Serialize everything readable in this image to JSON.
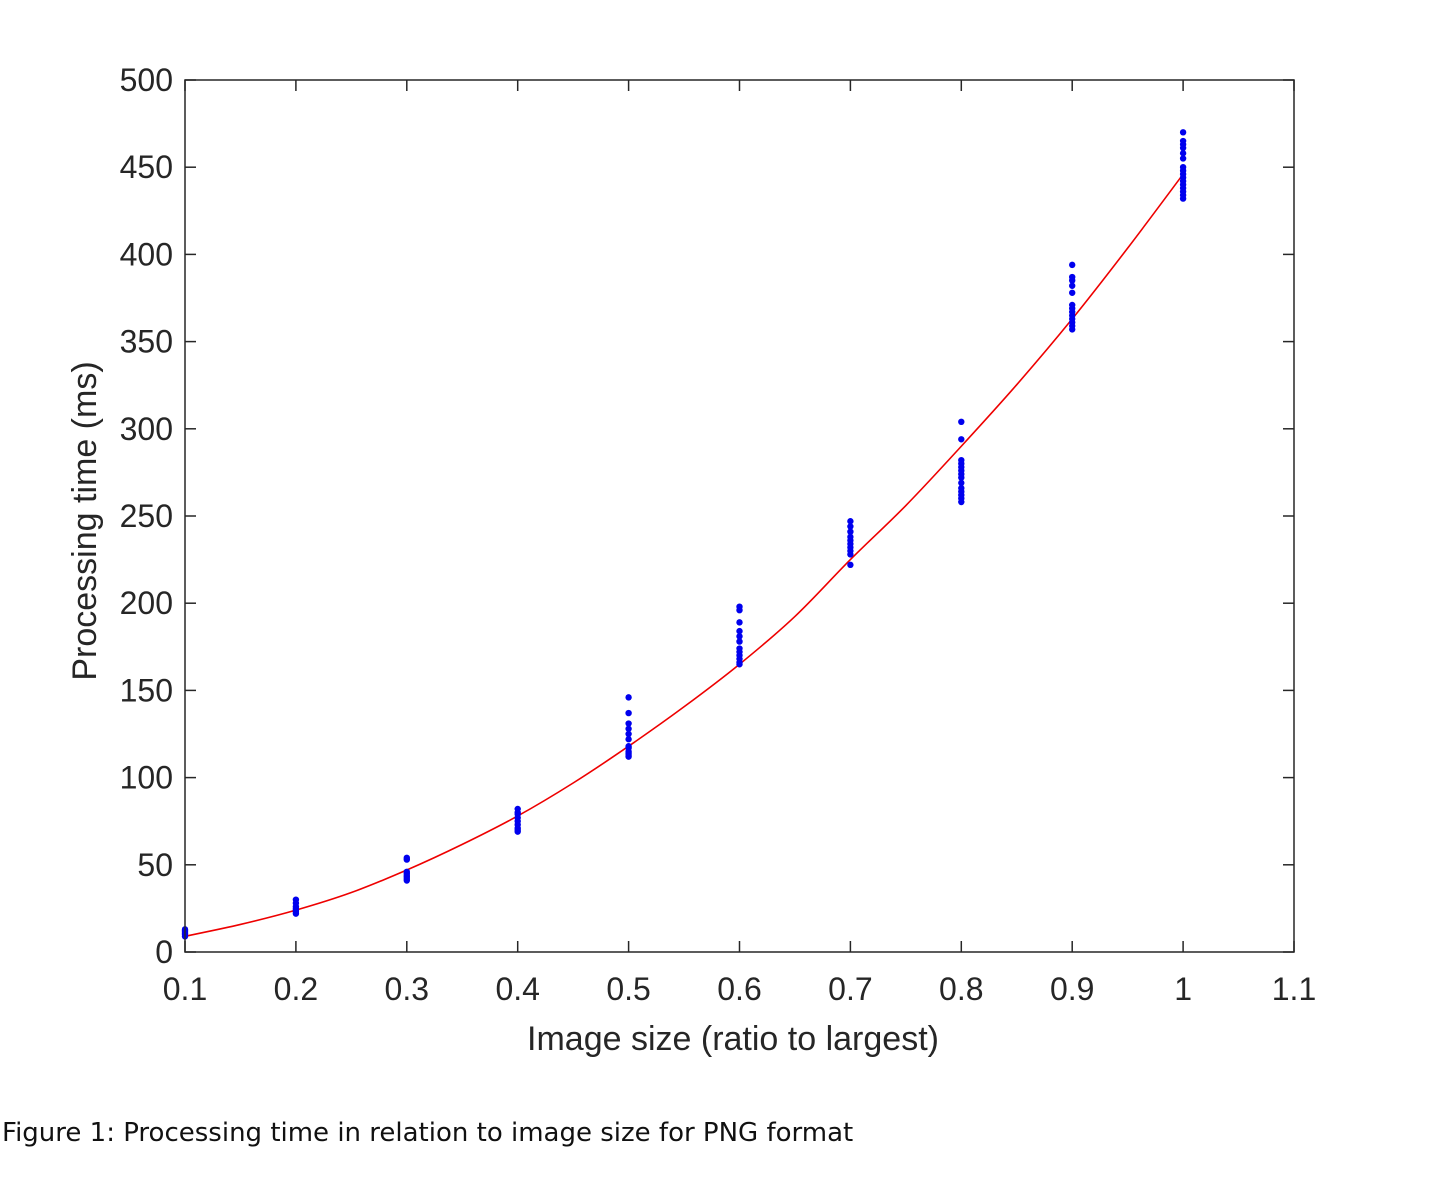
{
  "caption": "Figure 1: Processing time in relation to image size for PNG format",
  "chart_data": {
    "type": "scatter",
    "title": "",
    "xlabel": "Image size (ratio to largest)",
    "ylabel": "Processing time (ms)",
    "xlim": [
      0.1,
      1.1
    ],
    "ylim": [
      0,
      500
    ],
    "xticks": [
      0.1,
      0.2,
      0.3,
      0.4,
      0.5,
      0.6,
      0.7,
      0.8,
      0.9,
      1.0,
      1.1
    ],
    "xtick_labels": [
      "0.1",
      "0.2",
      "0.3",
      "0.4",
      "0.5",
      "0.6",
      "0.7",
      "0.8",
      "0.9",
      "1",
      "1.1"
    ],
    "yticks": [
      0,
      50,
      100,
      150,
      200,
      250,
      300,
      350,
      400,
      450,
      500
    ],
    "ytick_labels": [
      "0",
      "50",
      "100",
      "150",
      "200",
      "250",
      "300",
      "350",
      "400",
      "450",
      "500"
    ],
    "grid": false,
    "legend": null,
    "series": [
      {
        "kind": "scatter",
        "color": "#0000ee",
        "points": [
          [
            0.1,
            9
          ],
          [
            0.1,
            10
          ],
          [
            0.1,
            11
          ],
          [
            0.1,
            12
          ],
          [
            0.1,
            13
          ],
          [
            0.2,
            22
          ],
          [
            0.2,
            23
          ],
          [
            0.2,
            24
          ],
          [
            0.2,
            25
          ],
          [
            0.2,
            26
          ],
          [
            0.2,
            28
          ],
          [
            0.2,
            30
          ],
          [
            0.3,
            41
          ],
          [
            0.3,
            42
          ],
          [
            0.3,
            43
          ],
          [
            0.3,
            44
          ],
          [
            0.3,
            45
          ],
          [
            0.3,
            46
          ],
          [
            0.3,
            53
          ],
          [
            0.3,
            54
          ],
          [
            0.4,
            69
          ],
          [
            0.4,
            70
          ],
          [
            0.4,
            71
          ],
          [
            0.4,
            73
          ],
          [
            0.4,
            75
          ],
          [
            0.4,
            77
          ],
          [
            0.4,
            79
          ],
          [
            0.4,
            80
          ],
          [
            0.4,
            82
          ],
          [
            0.5,
            112
          ],
          [
            0.5,
            113
          ],
          [
            0.5,
            114
          ],
          [
            0.5,
            115
          ],
          [
            0.5,
            117
          ],
          [
            0.5,
            118
          ],
          [
            0.5,
            122
          ],
          [
            0.5,
            125
          ],
          [
            0.5,
            128
          ],
          [
            0.5,
            131
          ],
          [
            0.5,
            137
          ],
          [
            0.5,
            146
          ],
          [
            0.6,
            165
          ],
          [
            0.6,
            166
          ],
          [
            0.6,
            168
          ],
          [
            0.6,
            170
          ],
          [
            0.6,
            172
          ],
          [
            0.6,
            174
          ],
          [
            0.6,
            178
          ],
          [
            0.6,
            181
          ],
          [
            0.6,
            184
          ],
          [
            0.6,
            189
          ],
          [
            0.6,
            196
          ],
          [
            0.6,
            198
          ],
          [
            0.7,
            222
          ],
          [
            0.7,
            228
          ],
          [
            0.7,
            230
          ],
          [
            0.7,
            232
          ],
          [
            0.7,
            234
          ],
          [
            0.7,
            236
          ],
          [
            0.7,
            238
          ],
          [
            0.7,
            241
          ],
          [
            0.7,
            244
          ],
          [
            0.7,
            247
          ],
          [
            0.8,
            258
          ],
          [
            0.8,
            260
          ],
          [
            0.8,
            262
          ],
          [
            0.8,
            264
          ],
          [
            0.8,
            266
          ],
          [
            0.8,
            269
          ],
          [
            0.8,
            272
          ],
          [
            0.8,
            274
          ],
          [
            0.8,
            276
          ],
          [
            0.8,
            278
          ],
          [
            0.8,
            280
          ],
          [
            0.8,
            282
          ],
          [
            0.8,
            294
          ],
          [
            0.8,
            304
          ],
          [
            0.9,
            357
          ],
          [
            0.9,
            359
          ],
          [
            0.9,
            361
          ],
          [
            0.9,
            363
          ],
          [
            0.9,
            365
          ],
          [
            0.9,
            367
          ],
          [
            0.9,
            369
          ],
          [
            0.9,
            371
          ],
          [
            0.9,
            378
          ],
          [
            0.9,
            382
          ],
          [
            0.9,
            385
          ],
          [
            0.9,
            387
          ],
          [
            0.9,
            394
          ],
          [
            1.0,
            432
          ],
          [
            1.0,
            434
          ],
          [
            1.0,
            436
          ],
          [
            1.0,
            438
          ],
          [
            1.0,
            440
          ],
          [
            1.0,
            442
          ],
          [
            1.0,
            444
          ],
          [
            1.0,
            446
          ],
          [
            1.0,
            448
          ],
          [
            1.0,
            450
          ],
          [
            1.0,
            455
          ],
          [
            1.0,
            458
          ],
          [
            1.0,
            461
          ],
          [
            1.0,
            463
          ],
          [
            1.0,
            465
          ],
          [
            1.0,
            470
          ]
        ]
      },
      {
        "kind": "line",
        "color": "#ee0000",
        "x": [
          0.1,
          0.15,
          0.2,
          0.25,
          0.3,
          0.35,
          0.4,
          0.45,
          0.5,
          0.55,
          0.6,
          0.65,
          0.7,
          0.75,
          0.8,
          0.85,
          0.9,
          0.95,
          1.0
        ],
        "y": [
          9,
          15.8,
          24,
          34.1,
          47,
          61.7,
          78,
          96.9,
          118,
          140.6,
          165,
          192.4,
          225,
          256,
          290,
          325.3,
          363,
          403.6,
          446
        ]
      }
    ]
  }
}
